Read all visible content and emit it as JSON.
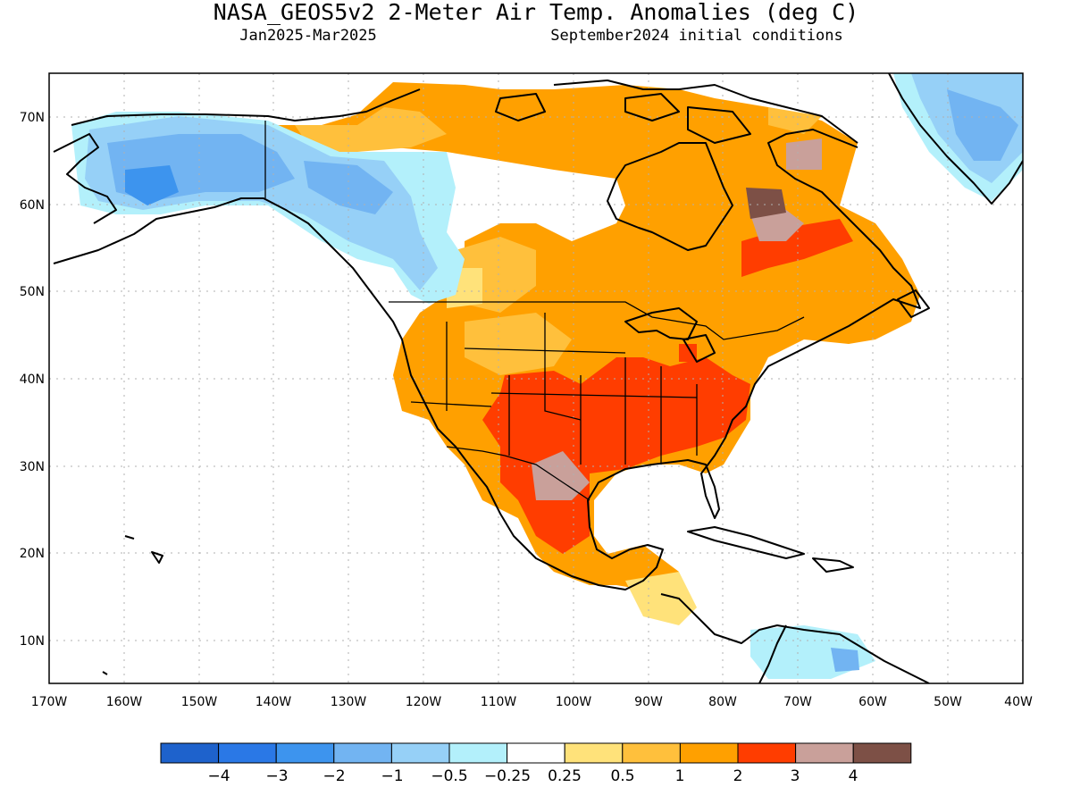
{
  "title": "NASA_GEOS5v2 2-Meter Air Temp. Anomalies (deg C)",
  "period": "Jan2025-Mar2025",
  "initial_conditions": "September2024 initial conditions",
  "lat_labels": [
    "70N",
    "60N",
    "50N",
    "40N",
    "30N",
    "20N",
    "10N"
  ],
  "lon_labels": [
    "170W",
    "160W",
    "150W",
    "140W",
    "130W",
    "120W",
    "110W",
    "100W",
    "90W",
    "80W",
    "70W",
    "60W",
    "50W",
    "40W"
  ],
  "colorbar": {
    "colors": [
      "#1e62cc",
      "#2a78e6",
      "#3d94ee",
      "#72b4f2",
      "#96d0f7",
      "#b3f0fb",
      "#ffffff",
      "#ffe27a",
      "#ffc03c",
      "#ffa000",
      "#ff3d00",
      "#c9a09a",
      "#7d5046"
    ],
    "labels": [
      "−4",
      "−3",
      "−2",
      "−1",
      "−0.5",
      "−0.25",
      "0.25",
      "0.5",
      "1",
      "2",
      "3",
      "4"
    ]
  },
  "colors": {
    "coast": "#000000",
    "grid": "#b0b0b0",
    "frame": "#000000"
  }
}
